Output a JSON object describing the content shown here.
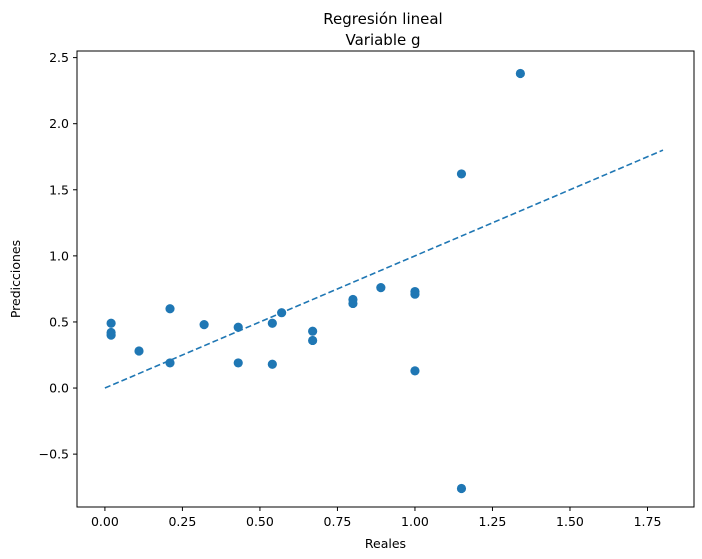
{
  "chart_data": {
    "type": "scatter",
    "title": "Regresión lineal",
    "subtitle": "Variable g",
    "xlabel": "Reales",
    "ylabel": "Predicciones",
    "xlim": [
      -0.09,
      1.9
    ],
    "ylim": [
      -0.9,
      2.55
    ],
    "xticks": [
      0.0,
      0.25,
      0.5,
      0.75,
      1.0,
      1.25,
      1.5,
      1.75
    ],
    "xtick_labels": [
      "0.00",
      "0.25",
      "0.50",
      "0.75",
      "1.00",
      "1.25",
      "1.50",
      "1.75"
    ],
    "yticks": [
      -0.5,
      0.0,
      0.5,
      1.0,
      1.5,
      2.0,
      2.5
    ],
    "ytick_labels": [
      "−0.5",
      "0.0",
      "0.5",
      "1.0",
      "1.5",
      "2.0",
      "2.5"
    ],
    "grid": false,
    "color": "#1f77b4",
    "series": [
      {
        "name": "points",
        "kind": "scatter",
        "x": [
          0.02,
          0.02,
          0.02,
          0.11,
          0.21,
          0.21,
          0.32,
          0.43,
          0.43,
          0.54,
          0.54,
          0.57,
          0.67,
          0.67,
          0.8,
          0.8,
          0.89,
          1.0,
          1.0,
          1.0,
          1.15,
          1.15,
          1.34
        ],
        "y": [
          0.49,
          0.42,
          0.4,
          0.28,
          0.6,
          0.19,
          0.48,
          0.46,
          0.19,
          0.49,
          0.18,
          0.57,
          0.43,
          0.36,
          0.67,
          0.64,
          0.76,
          0.73,
          0.71,
          0.13,
          1.62,
          -0.76,
          2.38
        ]
      },
      {
        "name": "identity",
        "kind": "dashed-line",
        "x": [
          0.0,
          1.8
        ],
        "y": [
          0.0,
          1.8
        ]
      }
    ]
  }
}
